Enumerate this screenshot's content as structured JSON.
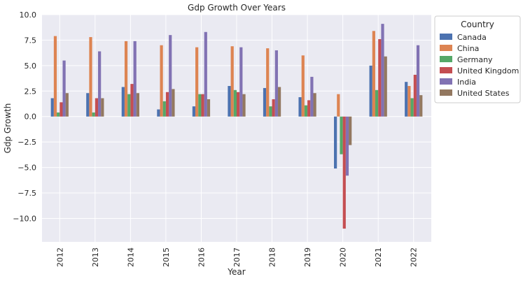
{
  "chart_data": {
    "type": "bar",
    "title": "Gdp Growth Over Years",
    "xlabel": "Year",
    "ylabel": "Gdp Growth",
    "categories": [
      "2012",
      "2013",
      "2014",
      "2015",
      "2016",
      "2017",
      "2018",
      "2019",
      "2020",
      "2021",
      "2022"
    ],
    "ylim": [
      -12.3,
      10.0
    ],
    "yticks": [
      10.0,
      7.5,
      5.0,
      2.5,
      0.0,
      -2.5,
      -5.0,
      -7.5,
      -10.0
    ],
    "ytick_labels": [
      "10.0",
      "7.5",
      "5.0",
      "2.5",
      "0.0",
      "−2.5",
      "−5.0",
      "−7.5",
      "−10.0"
    ],
    "grid": true,
    "legend": {
      "title": "Country",
      "placement": "outside-top-right"
    },
    "series": [
      {
        "name": "Canada",
        "color": "#4c72b0",
        "values": [
          1.8,
          2.3,
          2.9,
          0.7,
          1.0,
          3.0,
          2.8,
          1.9,
          -5.1,
          5.0,
          3.4
        ]
      },
      {
        "name": "China",
        "color": "#dd8452",
        "values": [
          7.9,
          7.8,
          7.4,
          7.0,
          6.8,
          6.9,
          6.7,
          6.0,
          2.2,
          8.4,
          3.0
        ]
      },
      {
        "name": "Germany",
        "color": "#55a868",
        "values": [
          0.4,
          0.4,
          2.2,
          1.5,
          2.2,
          2.6,
          1.0,
          1.1,
          -3.7,
          2.6,
          1.8
        ]
      },
      {
        "name": "United Kingdom",
        "color": "#c44e52",
        "values": [
          1.4,
          1.8,
          3.2,
          2.4,
          2.2,
          2.4,
          1.7,
          1.6,
          -11.0,
          7.6,
          4.1
        ]
      },
      {
        "name": "India",
        "color": "#8172b3",
        "values": [
          5.5,
          6.4,
          7.4,
          8.0,
          8.3,
          6.8,
          6.5,
          3.9,
          -5.8,
          9.1,
          7.0
        ]
      },
      {
        "name": "United States",
        "color": "#937860",
        "values": [
          2.3,
          1.8,
          2.3,
          2.7,
          1.7,
          2.2,
          2.9,
          2.3,
          -2.8,
          5.9,
          2.1
        ]
      }
    ]
  }
}
